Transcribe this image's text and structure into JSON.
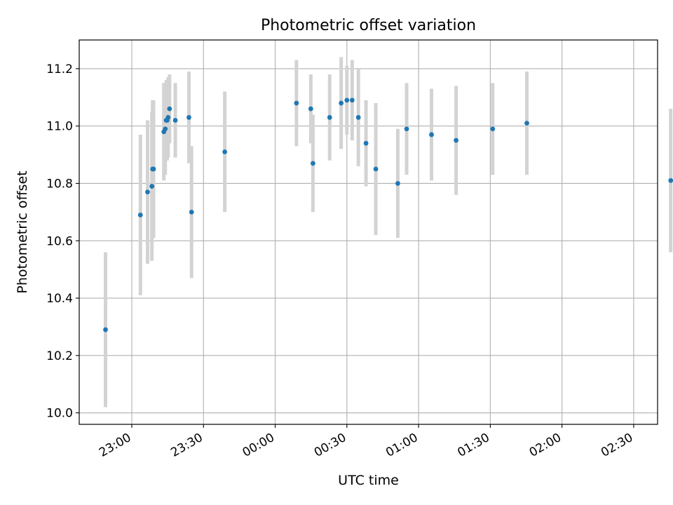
{
  "chart_data": {
    "type": "scatter",
    "title": "Photometric offset variation",
    "xlabel": "UTC time",
    "ylabel": "Photometric offset",
    "xticks": [
      "23:00",
      "23:30",
      "00:00",
      "00:30",
      "01:00",
      "01:30",
      "02:00",
      "02:30"
    ],
    "xtick_minutes": [
      0,
      30,
      60,
      90,
      120,
      150,
      180,
      210
    ],
    "xlim_minutes": [
      -22,
      220
    ],
    "yticks": [
      "10.0",
      "10.2",
      "10.4",
      "10.6",
      "10.8",
      "11.0",
      "11.2"
    ],
    "ylim": [
      9.96,
      11.3
    ],
    "grid": true,
    "colors": {
      "point": "#1f77b4",
      "errorbar": "#d3d3d3",
      "grid": "#b0b0b0"
    },
    "series": [
      {
        "x_minutes": [
          -11.0,
          3.6,
          6.6,
          8.4,
          8.7,
          9.1,
          13.4,
          14.0,
          14.4,
          14.8,
          15.2,
          15.8,
          18.2,
          23.9,
          25.0,
          38.9,
          68.9,
          74.9,
          75.8,
          82.8,
          87.6,
          90.0,
          92.2,
          94.8,
          98.0,
          102.1,
          111.3,
          115.0,
          125.4,
          135.7,
          151.0,
          165.3,
          225.5
        ],
        "y": [
          10.29,
          10.69,
          10.77,
          10.79,
          10.85,
          10.85,
          10.98,
          10.99,
          11.02,
          11.02,
          11.03,
          11.06,
          11.02,
          11.03,
          10.7,
          10.91,
          11.08,
          11.06,
          10.87,
          11.03,
          11.08,
          11.09,
          11.09,
          11.03,
          10.94,
          10.85,
          10.8,
          10.99,
          10.97,
          10.95,
          10.99,
          11.01,
          10.81
        ],
        "yerr": [
          0.27,
          0.28,
          0.25,
          0.26,
          0.24,
          0.24,
          0.17,
          0.16,
          0.14,
          0.14,
          0.14,
          0.12,
          0.13,
          0.16,
          0.23,
          0.21,
          0.15,
          0.12,
          0.17,
          0.15,
          0.16,
          0.12,
          0.14,
          0.17,
          0.15,
          0.23,
          0.19,
          0.16,
          0.16,
          0.19,
          0.16,
          0.18,
          0.25
        ]
      }
    ]
  }
}
